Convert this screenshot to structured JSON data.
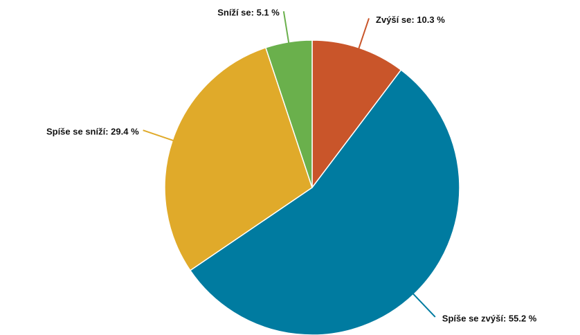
{
  "chart_data": {
    "type": "pie",
    "values": [
      10.3,
      55.2,
      29.4,
      5.1
    ],
    "value_labels": [
      "Zvýší se: 10.3 %",
      "Spíše se zvýší: 55.2 %",
      "Spíše se sníží: 29.4 %",
      "Sníží se: 5.1 %"
    ],
    "colors": [
      "#c9552a",
      "#007ba0",
      "#e0aa2a",
      "#6ab04c"
    ]
  }
}
